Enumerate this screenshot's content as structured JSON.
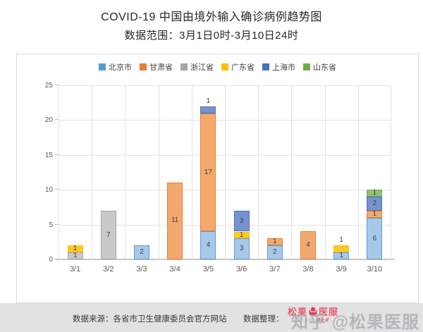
{
  "header": {
    "title": "COVID-19 中国由境外输入确诊病例趋势图",
    "subtitle": "数据范围：3月1日0时-3月10日24时"
  },
  "chart_data": {
    "type": "bar",
    "stacked": true,
    "title": "COVID-19 中国由境外输入确诊病例趋势图",
    "subtitle": "数据范围：3月1日0时-3月10日24时",
    "categories": [
      "3/1",
      "3/2",
      "3/3",
      "3/4",
      "3/5",
      "3/6",
      "3/7",
      "3/8",
      "3/9",
      "3/10"
    ],
    "series": [
      {
        "name": "北京市",
        "color": "#5B9BD5",
        "fill": "#A7C9E9",
        "values": [
          0,
          0,
          2,
          0,
          4,
          3,
          2,
          0,
          1,
          6
        ]
      },
      {
        "name": "甘肃省",
        "color": "#ED7D31",
        "fill": "#F3A96E",
        "values": [
          0,
          0,
          0,
          11,
          17,
          0,
          1,
          4,
          0,
          1
        ]
      },
      {
        "name": "浙江省",
        "color": "#A5A5A5",
        "fill": "#C9C9C9",
        "values": [
          1,
          7,
          0,
          0,
          0,
          0,
          0,
          0,
          0,
          0
        ]
      },
      {
        "name": "广东省",
        "color": "#FFC000",
        "fill": "#FFC72C",
        "values": [
          1,
          0,
          0,
          0,
          0,
          1,
          0,
          0,
          1,
          0
        ]
      },
      {
        "name": "上海市",
        "color": "#4472C4",
        "fill": "#7793CF",
        "values": [
          0,
          0,
          0,
          0,
          1,
          3,
          0,
          0,
          0,
          2
        ]
      },
      {
        "name": "山东省",
        "color": "#70AD47",
        "fill": "#95C075",
        "values": [
          0,
          0,
          0,
          0,
          0,
          0,
          0,
          0,
          0,
          1
        ]
      }
    ],
    "totals": [
      2,
      7,
      2,
      11,
      22,
      7,
      3,
      4,
      2,
      10
    ],
    "labels_above": [
      {
        "category": "3/5",
        "series": "上海市"
      },
      {
        "category": "3/9",
        "series": "广东省"
      }
    ],
    "ylim": [
      0,
      25
    ],
    "yticks": [
      0,
      5,
      10,
      15,
      20,
      25
    ],
    "grid": true,
    "legend_position": "top",
    "xlabel": "",
    "ylabel": ""
  },
  "footer": {
    "source_label": "数据来源：各省市卫生健康委员会官方网站",
    "credit_label": "数据整理：",
    "logo": {
      "part1": "松果",
      "part2": "医服",
      "icon": "pinecone-pot-icon",
      "subtext": "Scan Med"
    },
    "watermark": "知乎 @松果医服"
  },
  "colors": {
    "footer_bg": "#E2E2E2",
    "logo_pink": "#E75A71",
    "logo_red": "#E8384F",
    "watermark_gray": "#AAAEB3",
    "card_border": "#DBDBDB"
  }
}
